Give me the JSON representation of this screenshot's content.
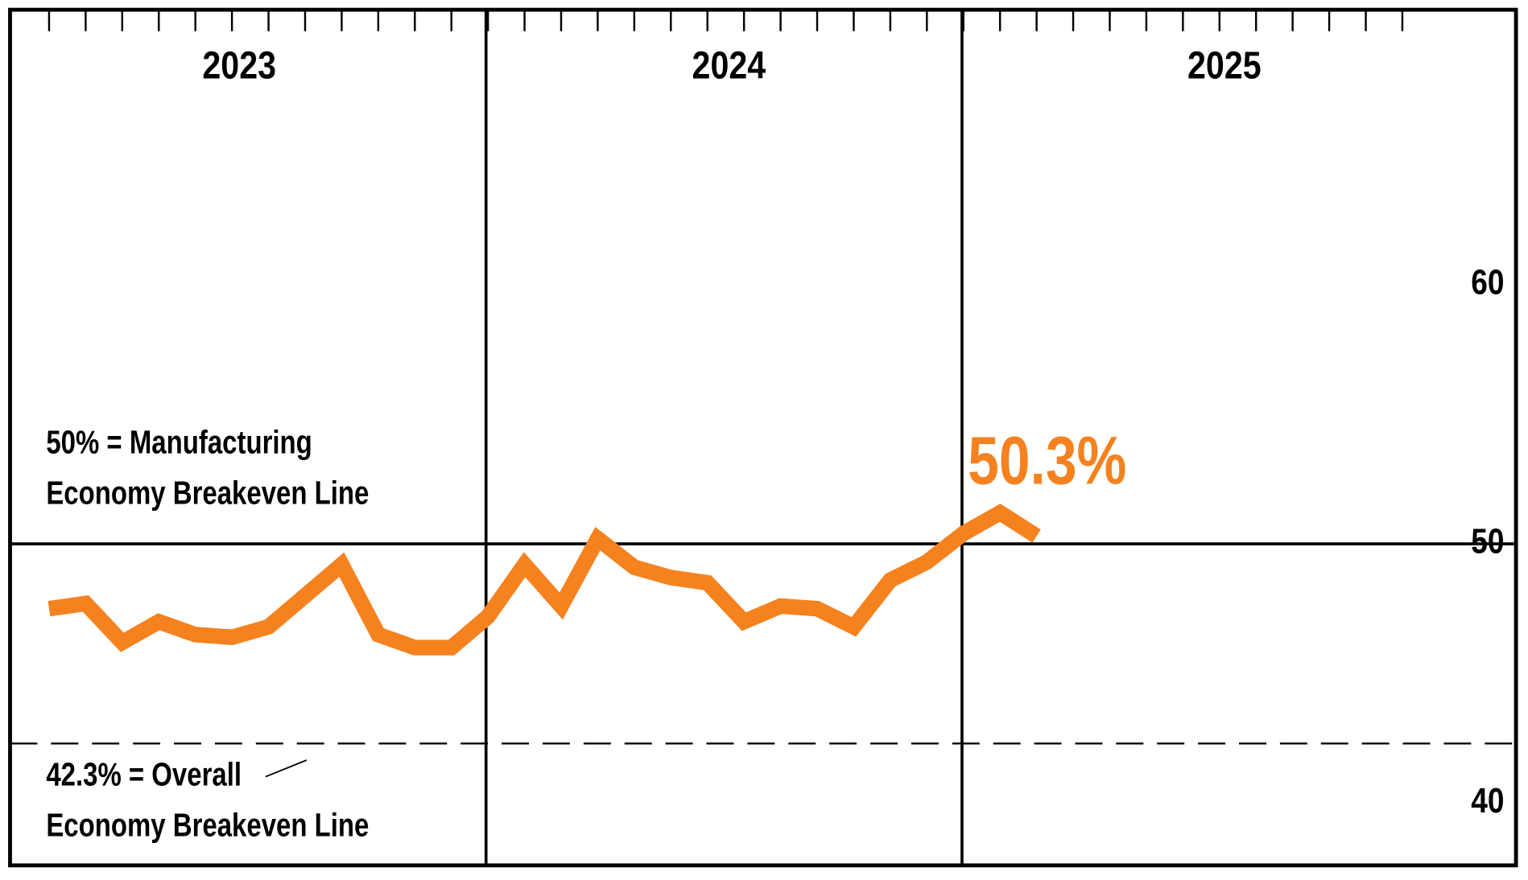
{
  "chart_data": {
    "type": "line",
    "year_labels": [
      "2023",
      "2024",
      "2025"
    ],
    "series": [
      {
        "color": "#f5821f",
        "values": [
          47.5,
          47.7,
          46.2,
          47.0,
          46.5,
          46.4,
          46.8,
          48.0,
          49.2,
          46.5,
          46.0,
          46.0,
          47.2,
          49.2,
          47.6,
          50.2,
          49.1,
          48.7,
          48.5,
          47.0,
          47.6,
          47.5,
          46.8,
          48.6,
          49.3,
          50.4,
          51.2,
          50.3
        ],
        "last_value_label": "50.3%"
      }
    ],
    "ylim": [
      37.6,
      70.6
    ],
    "yticks": [
      40,
      50,
      60
    ],
    "reference_lines": [
      {
        "value": 50,
        "style": "solid",
        "label": [
          "50% = Manufacturing",
          "Economy Breakeven Line"
        ]
      },
      {
        "value": 42.3,
        "style": "dashed",
        "label": [
          "42.3% = Overall",
          "Economy Breakeven Line"
        ]
      }
    ]
  }
}
